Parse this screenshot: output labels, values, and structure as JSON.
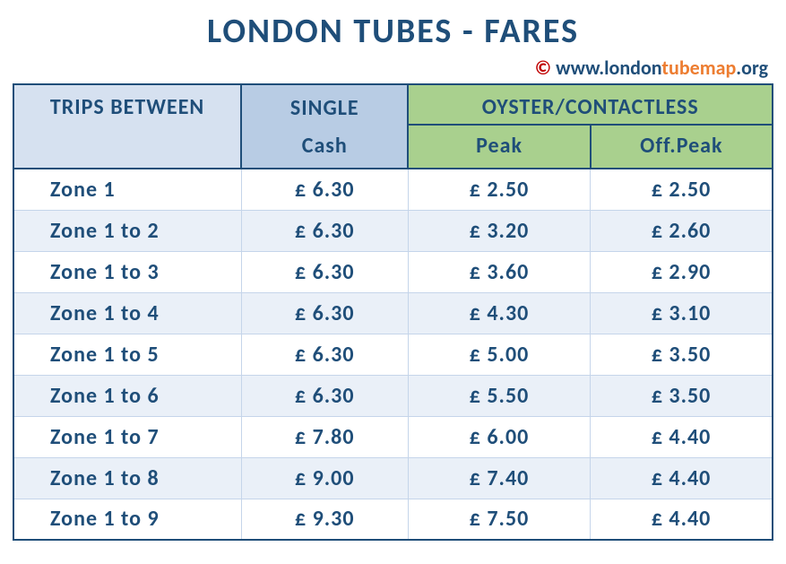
{
  "title": "LONDON TUBES - FARES",
  "copyright": {
    "symbol": "© ",
    "p1": "www.london",
    "p2": "tubemap",
    "p3": ".org"
  },
  "colors": {
    "heading_text": "#1f4e79",
    "trips_bg": "#d6e1f0",
    "single_bg": "#b8cce4",
    "oyster_bg": "#a9d08e",
    "row_even_bg": "#eaf0f8",
    "row_odd_bg": "#ffffff",
    "border": "#1f4e79",
    "cell_border": "#c5d5ea",
    "c_red": "#c00000",
    "c_orange": "#ed7d31"
  },
  "typography": {
    "title_fontsize": 38,
    "header_fontsize": 24,
    "cell_fontsize": 24,
    "font_family": "Gill Sans"
  },
  "columns": {
    "trips": "TRIPS BETWEEN",
    "single_top": "SINGLE",
    "single_bottom": "Cash",
    "oyster": "OYSTER/CONTACTLESS",
    "peak": "Peak",
    "offpeak": "Off.Peak"
  },
  "column_widths_pct": [
    30,
    22,
    24,
    24
  ],
  "rows": [
    {
      "zone": "Zone 1",
      "cash": "£ 6.30",
      "peak": "£ 2.50",
      "offpeak": "£ 2.50"
    },
    {
      "zone": "Zone 1 to 2",
      "cash": "£ 6.30",
      "peak": "£ 3.20",
      "offpeak": "£ 2.60"
    },
    {
      "zone": "Zone 1 to 3",
      "cash": "£ 6.30",
      "peak": "£ 3.60",
      "offpeak": "£ 2.90"
    },
    {
      "zone": "Zone 1 to 4",
      "cash": "£ 6.30",
      "peak": "£ 4.30",
      "offpeak": "£ 3.10"
    },
    {
      "zone": "Zone 1 to 5",
      "cash": "£ 6.30",
      "peak": "£ 5.00",
      "offpeak": "£ 3.50"
    },
    {
      "zone": "Zone 1 to 6",
      "cash": "£ 6.30",
      "peak": "£ 5.50",
      "offpeak": "£ 3.50"
    },
    {
      "zone": "Zone 1 to 7",
      "cash": "£ 7.80",
      "peak": "£ 6.00",
      "offpeak": "£ 4.40"
    },
    {
      "zone": "Zone 1 to 8",
      "cash": "£ 9.00",
      "peak": "£ 7.40",
      "offpeak": "£ 4.40"
    },
    {
      "zone": "Zone 1 to 9",
      "cash": "£ 9.30",
      "peak": "£ 7.50",
      "offpeak": "£ 4.40"
    }
  ]
}
